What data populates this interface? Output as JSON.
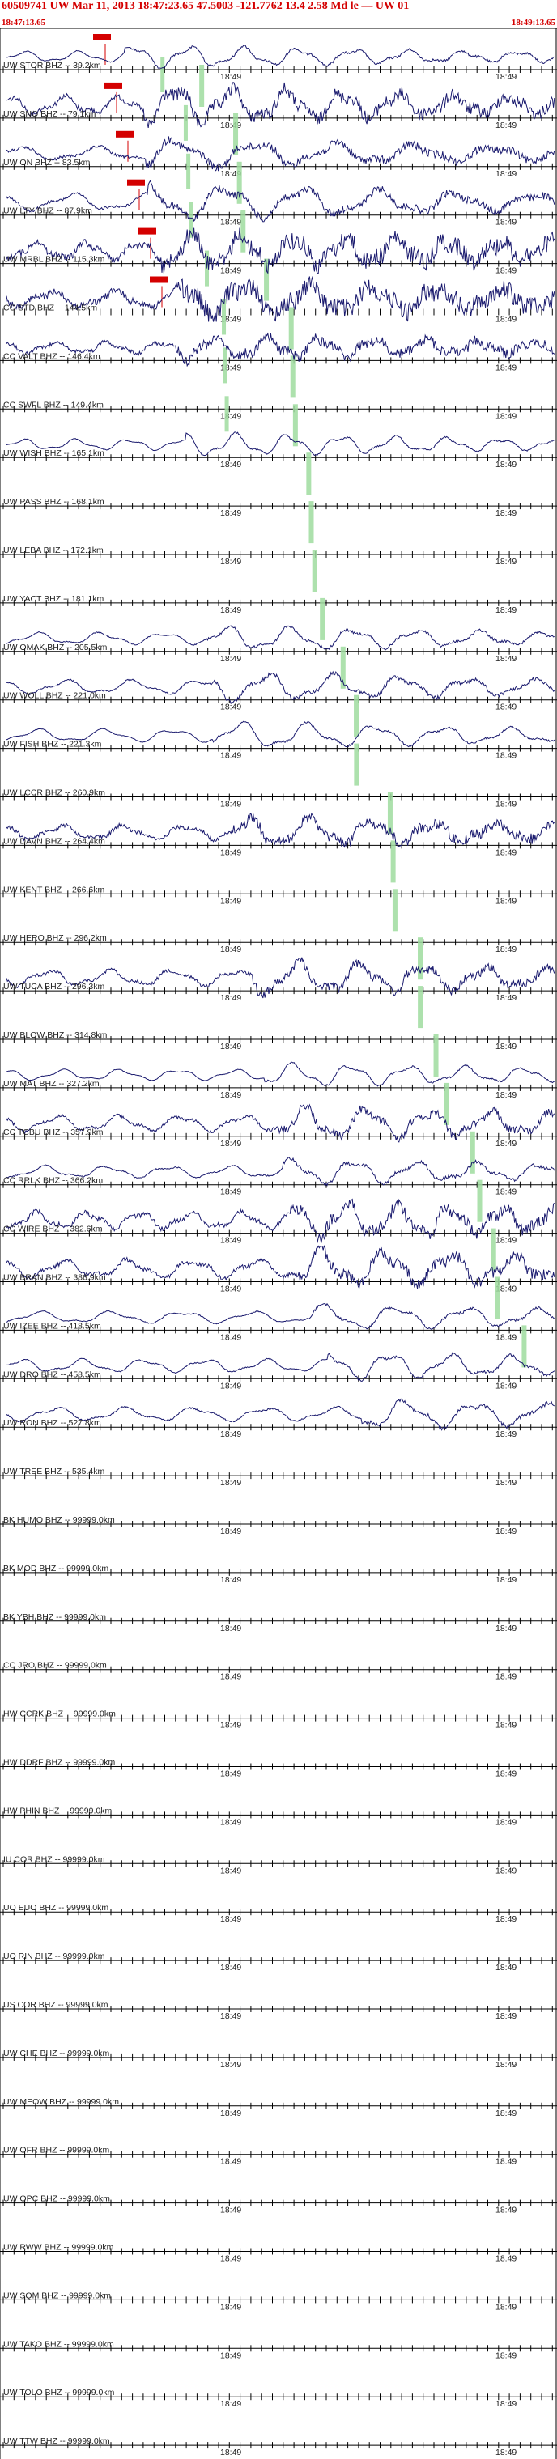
{
  "header": {
    "title": "60509741 UW Mar 11, 2013 18:47:23.65   47.5003 -121.7762 13.4 2.58 Md le — UW 01",
    "start_time": "18:47:13.65",
    "end_time": "18:49:13.65"
  },
  "chart_data": {
    "type": "seismogram",
    "time_tick_label": "18:49",
    "colors": {
      "trace": "#1a1a6e",
      "p_pick": "#d40000",
      "phase_marker": "#9fdc9f",
      "axis": "#000000",
      "header_text": "#d40000"
    },
    "traces": [
      {
        "label": "UW STOR BHZ -- 39.2km",
        "amp": 0.55,
        "noise": 0.15
      },
      {
        "label": "UW SNO BHZ -- 79.1km",
        "amp": 0.9,
        "noise": 0.5
      },
      {
        "label": "UW ON BHZ -- 83.5km",
        "amp": 0.7,
        "noise": 0.4
      },
      {
        "label": "UW LTY BHZ -- 87.9km",
        "amp": 0.85,
        "noise": 0.3
      },
      {
        "label": "UW MRBL BHZ -- 115.3km",
        "amp": 0.9,
        "noise": 0.7
      },
      {
        "label": "CC STD BHZ -- 144.5km",
        "amp": 0.85,
        "noise": 0.8
      },
      {
        "label": "CC VALT BHZ -- 146.4km",
        "amp": 0.6,
        "noise": 0.6
      },
      {
        "label": "CC SWFL BHZ -- 149.4km",
        "amp": 0.0,
        "noise": 0.0
      },
      {
        "label": "UW WISH BHZ -- 165.1km",
        "amp": 0.55,
        "noise": 0.1
      },
      {
        "label": "UW PASS BHZ -- 168.1km",
        "amp": 0.0,
        "noise": 0.0
      },
      {
        "label": "UW LEBA BHZ -- 172.1km",
        "amp": 0.0,
        "noise": 0.0
      },
      {
        "label": "UW YACT BHZ -- 181.1km",
        "amp": 0.0,
        "noise": 0.0
      },
      {
        "label": "UW OMAK BHZ -- 205.5km",
        "amp": 0.6,
        "noise": 0.15
      },
      {
        "label": "UW WOLL BHZ -- 221.0km",
        "amp": 0.7,
        "noise": 0.2
      },
      {
        "label": "UW FISH BHZ -- 221.3km",
        "amp": 0.65,
        "noise": 0.1
      },
      {
        "label": "UW LCCR BHZ -- 260.9km",
        "amp": 0.0,
        "noise": 0.0
      },
      {
        "label": "UW DAVN BHZ -- 264.4km",
        "amp": 0.7,
        "noise": 0.55
      },
      {
        "label": "UW KENT BHZ -- 266.6km",
        "amp": 0.0,
        "noise": 0.0
      },
      {
        "label": "UW HERO BHZ -- 296.2km",
        "amp": 0.0,
        "noise": 0.0
      },
      {
        "label": "UW TUCA BHZ -- 296.3km",
        "amp": 0.8,
        "noise": 0.4
      },
      {
        "label": "UW BLOW BHZ -- 314.8km",
        "amp": 0.0,
        "noise": 0.0
      },
      {
        "label": "UW MAT BHZ -- 327.2km",
        "amp": 0.55,
        "noise": 0.1
      },
      {
        "label": "CC TCBU BHZ -- 357.9km",
        "amp": 0.8,
        "noise": 0.35
      },
      {
        "label": "CC RRLK BHZ -- 366.2km",
        "amp": 0.6,
        "noise": 0.2
      },
      {
        "label": "CC WIRE BHZ -- 382.6km",
        "amp": 0.85,
        "noise": 0.5
      },
      {
        "label": "UW BRAN BHZ -- 386.9km",
        "amp": 0.9,
        "noise": 0.45
      },
      {
        "label": "UW IZEE BHZ -- 418.5km",
        "amp": 0.6,
        "noise": 0.15
      },
      {
        "label": "UW DRO BHZ -- 458.5km",
        "amp": 0.65,
        "noise": 0.15
      },
      {
        "label": "UW RON BHZ -- 527.8km",
        "amp": 0.7,
        "noise": 0.2
      },
      {
        "label": "UW TREE BHZ -- 535.4km",
        "amp": 0.0,
        "noise": 0.0
      },
      {
        "label": "BK HUMO BHZ -- 99999.0km",
        "amp": 0.0,
        "noise": 0.0
      },
      {
        "label": "BK MOD BHZ -- 99999.0km",
        "amp": 0.0,
        "noise": 0.0
      },
      {
        "label": "BK YBH BHZ -- 99999.0km",
        "amp": 0.0,
        "noise": 0.0
      },
      {
        "label": "CC JRO BHZ -- 99999.0km",
        "amp": 0.0,
        "noise": 0.0
      },
      {
        "label": "HW CCRK BHZ -- 99999.0km",
        "amp": 0.0,
        "noise": 0.0
      },
      {
        "label": "HW DDRF BHZ -- 99999.0km",
        "amp": 0.0,
        "noise": 0.0
      },
      {
        "label": "HW PHIN BHZ -- 99999.0km",
        "amp": 0.0,
        "noise": 0.0
      },
      {
        "label": "IU COR BHZ -- 99999.0km",
        "amp": 0.0,
        "noise": 0.0
      },
      {
        "label": "UO EUO BHZ -- 99999.0km",
        "amp": 0.0,
        "noise": 0.0
      },
      {
        "label": "UO RIN BHZ -- 99999.0km",
        "amp": 0.0,
        "noise": 0.0
      },
      {
        "label": "US COR BHZ -- 99999.0km",
        "amp": 0.0,
        "noise": 0.0
      },
      {
        "label": "UW CHE BHZ -- 99999.0km",
        "amp": 0.0,
        "noise": 0.0
      },
      {
        "label": "UW MEOW BHZ -- 99999.0km",
        "amp": 0.0,
        "noise": 0.0
      },
      {
        "label": "UW OFR BHZ -- 99999.0km",
        "amp": 0.0,
        "noise": 0.0
      },
      {
        "label": "UW OPC BHZ -- 99999.0km",
        "amp": 0.0,
        "noise": 0.0
      },
      {
        "label": "UW RWW BHZ -- 99999.0km",
        "amp": 0.0,
        "noise": 0.0
      },
      {
        "label": "UW SQM BHZ -- 99999.0km",
        "amp": 0.0,
        "noise": 0.0
      },
      {
        "label": "UW TAKO BHZ -- 99999.0km",
        "amp": 0.0,
        "noise": 0.0
      },
      {
        "label": "UW TOLO BHZ -- 99999.0km",
        "amp": 0.0,
        "noise": 0.0
      },
      {
        "label": "UW TTW BHZ -- 99999.0km",
        "amp": 0.0,
        "noise": 0.0
      }
    ]
  }
}
